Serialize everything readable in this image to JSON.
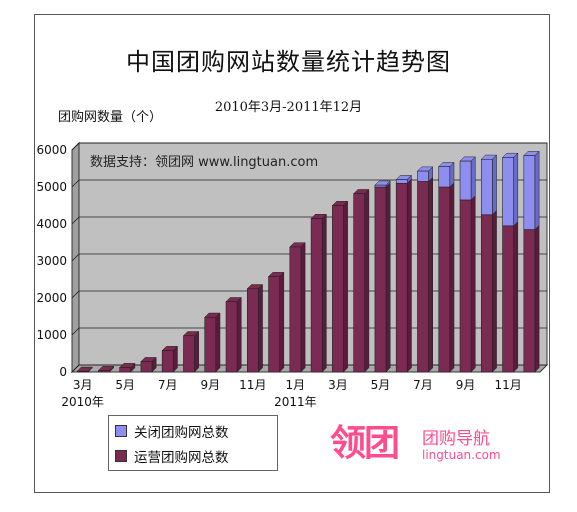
{
  "chart_data": {
    "type": "bar",
    "stacked": true,
    "title": "中国团购网站数量统计趋势图",
    "subtitle": "2010年3月-2011年12月",
    "ylabel": "团购网数量（个）",
    "annotation": "数据支持：领团网 www.lingtuan.com",
    "ylim": [
      0,
      6000
    ],
    "yticks": [
      "0",
      "1000",
      "2000",
      "3000",
      "4000",
      "5000",
      "6000"
    ],
    "x_tick_labels": [
      "3月",
      "5月",
      "7月",
      "9月",
      "11月",
      "1月",
      "3月",
      "5月",
      "7月",
      "9月",
      "11月"
    ],
    "year_labels": [
      "2010年",
      "2011年"
    ],
    "categories": [
      "2010-03",
      "2010-04",
      "2010-05",
      "2010-06",
      "2010-07",
      "2010-08",
      "2010-09",
      "2010-10",
      "2010-11",
      "2010-12",
      "2011-01",
      "2011-02",
      "2011-03",
      "2011-04",
      "2011-05",
      "2011-06",
      "2011-07",
      "2011-08",
      "2011-09",
      "2011-10",
      "2011-11",
      "2011-12"
    ],
    "series": [
      {
        "name": "运营团购网总数",
        "color": "#7b2a52",
        "values": [
          20,
          40,
          120,
          280,
          580,
          980,
          1480,
          1900,
          2250,
          2580,
          3380,
          4150,
          4500,
          4820,
          5000,
          5100,
          5150,
          5000,
          4650,
          4250,
          3950,
          3850
        ]
      },
      {
        "name": "关闭团购网总数",
        "color": "#8e8ef0",
        "values": [
          0,
          0,
          0,
          0,
          0,
          0,
          0,
          0,
          0,
          0,
          0,
          0,
          0,
          0,
          50,
          100,
          280,
          550,
          1050,
          1500,
          1850,
          2000
        ]
      }
    ]
  },
  "legend": {
    "closed": "关闭团购网总数",
    "operating": "运营团购网总数"
  },
  "logo": {
    "main": "领团",
    "sub": "团购导航",
    "url": "lingtuan.com"
  }
}
